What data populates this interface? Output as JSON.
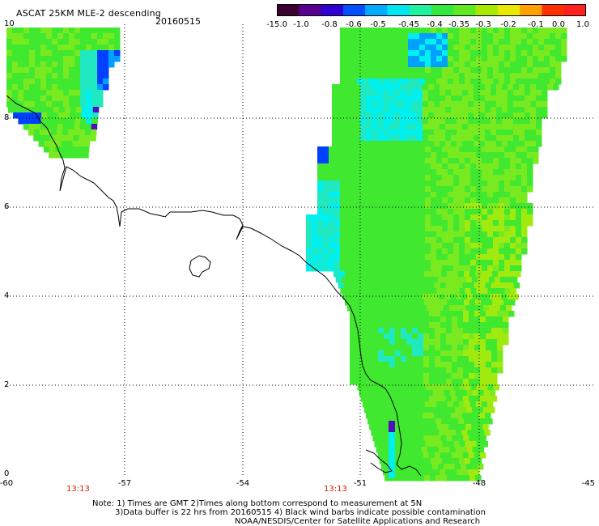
{
  "header": {
    "title": "ASCAT 25KM MLE-2 descending",
    "date": "20160515"
  },
  "colorbar": {
    "ticks": [
      "-15.0",
      "-1.0",
      "-0.8",
      "-0.6",
      "-0.5",
      "-0.45",
      "-0.4",
      "-0.35",
      "-0.3",
      "-0.2",
      "-0.1",
      "0.0",
      "1.0"
    ],
    "colors": [
      "#3a0030",
      "#5a0090",
      "#3000d0",
      "#0050ff",
      "#00aaff",
      "#00e5f0",
      "#20f0a0",
      "#30e840",
      "#60e820",
      "#a8e800",
      "#e8e800",
      "#ffa000",
      "#ff3000",
      "#ff2020"
    ]
  },
  "axes": {
    "x_ticks": [
      "-60",
      "-57",
      "-54",
      "-51",
      "-48",
      "-45"
    ],
    "y_ticks": [
      "0",
      "2",
      "4",
      "6",
      "8",
      "10"
    ],
    "time_labels": [
      "13:13",
      "13:13"
    ]
  },
  "footer": {
    "line1": "Note: 1) Times are GMT 2)Times along bottom correspond to measurement at 5N",
    "line2": "3)Data buffer is 22 hrs from 20160515 4) Black wind barbs indicate possible contamination",
    "line3": "NOAA/NESDIS/Center for Satellite Applications and Research"
  },
  "map_colors": {
    "green": "#40e830",
    "lightgreen": "#7aea20",
    "yellowgreen": "#a0ea10",
    "cyan": "#00f0f0",
    "aqua": "#20e8c0",
    "blue": "#0040ff",
    "skyblue": "#00a0ff",
    "violet": "#5010c0",
    "coast": "#000000"
  }
}
